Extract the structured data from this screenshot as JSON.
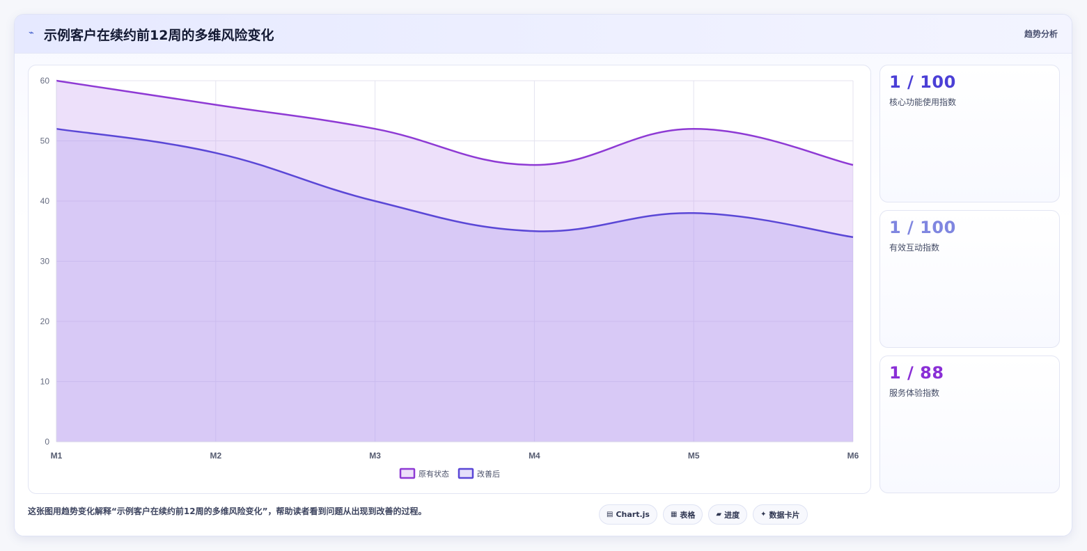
{
  "header": {
    "title": "示例客户在续约前12周的多维风险变化",
    "tag": "趋势分析"
  },
  "stats": [
    {
      "value": "1 / 100",
      "label": "核心功能使用指数",
      "color": "#4b3fd6"
    },
    {
      "value": "1 / 100",
      "label": "有效互动指数",
      "color": "#7f86e0"
    },
    {
      "value": "1 / 88",
      "label": "服务体验指数",
      "color": "#8a2fd6"
    }
  ],
  "caption": "这张图用趋势变化解释“示例客户在续约前12周的多维风险变化”，帮助读者看到问题从出现到改善的过程。",
  "chips": [
    {
      "icon": "chart-icon",
      "glyph": "▤",
      "label": "Chart.js"
    },
    {
      "icon": "table-icon",
      "glyph": "▦",
      "label": "表格"
    },
    {
      "icon": "progress-icon",
      "glyph": "▰",
      "label": "进度"
    },
    {
      "icon": "sparkle-icon",
      "glyph": "✦",
      "label": "数据卡片"
    }
  ],
  "chart_data": {
    "type": "area",
    "categories": [
      "M1",
      "M2",
      "M3",
      "M4",
      "M5",
      "M6"
    ],
    "series": [
      {
        "name": "原有状态",
        "values": [
          60,
          56,
          52,
          46,
          52,
          46
        ],
        "line": "#8e3ad4",
        "fill": "rgba(200,160,240,0.32)"
      },
      {
        "name": "改善后",
        "values": [
          52,
          48,
          40,
          35,
          38,
          34
        ],
        "line": "#5a47d6",
        "fill": "rgba(170,150,240,0.30)"
      }
    ],
    "ylim": [
      0,
      60
    ],
    "yticks": [
      0,
      10,
      20,
      30,
      40,
      50,
      60
    ],
    "grid": true,
    "legend": "bottom"
  }
}
